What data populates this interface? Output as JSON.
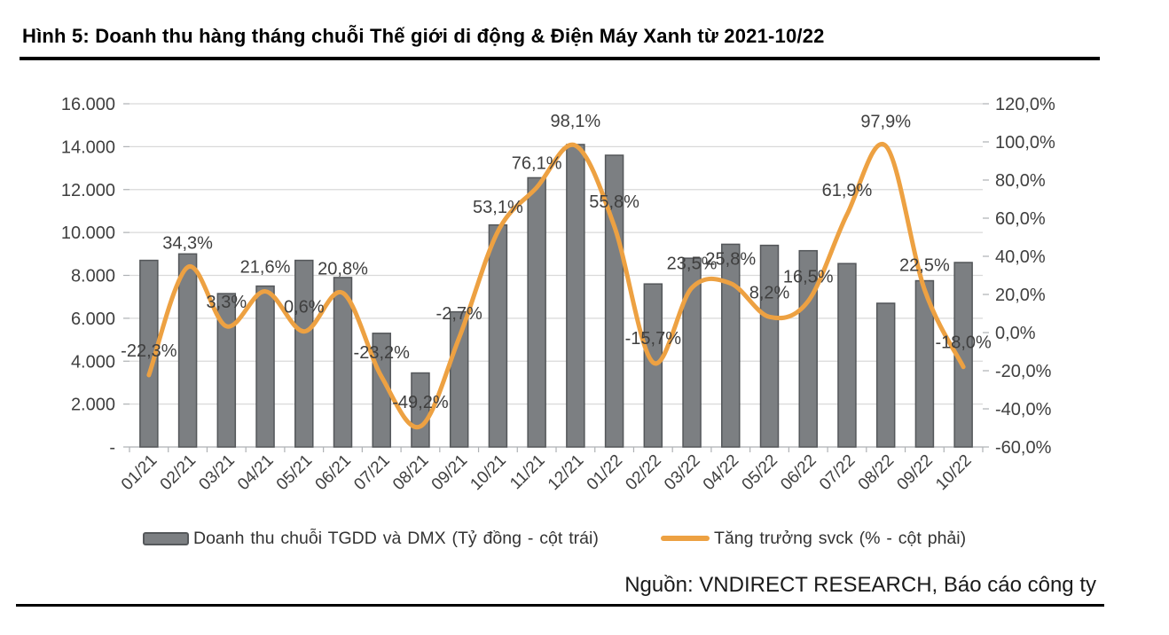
{
  "figure": {
    "title": "Hình 5: Doanh thu hàng tháng chuỗi Thế giới di động & Điện Máy Xanh từ 2021-10/22",
    "source": "Nguồn: VNDIRECT RESEARCH, Báo cáo công ty"
  },
  "legend": {
    "bar_label": "Doanh thu chuỗi TGDD và DMX (Tỷ đồng - cột trái)",
    "line_label": "Tăng trưởng svck (% - cột phải)"
  },
  "colors": {
    "bar_fill": "#7c7f82",
    "bar_stroke": "#54575a",
    "line": "#eda142",
    "grid": "#d9d9d9",
    "axis": "#aeb1b4",
    "tick": "#aeb1b4",
    "text": "#3f3f3f"
  },
  "chart_data": {
    "type": "bar",
    "subtype": "bar+line combo, dual axis",
    "categories": [
      "01/21",
      "02/21",
      "03/21",
      "04/21",
      "05/21",
      "06/21",
      "07/21",
      "08/21",
      "09/21",
      "10/21",
      "11/21",
      "12/21",
      "01/22",
      "02/22",
      "03/22",
      "04/22",
      "05/22",
      "06/22",
      "07/22",
      "08/22",
      "09/22",
      "10/22"
    ],
    "series": [
      {
        "name": "Doanh thu chuỗi TGDD và DMX (Tỷ đồng - cột trái)",
        "type": "bar",
        "axis": "left",
        "values": [
          8700,
          9000,
          7150,
          7500,
          8700,
          7900,
          5300,
          3450,
          6300,
          10350,
          12550,
          14100,
          13600,
          7600,
          8800,
          9450,
          9400,
          9150,
          8550,
          6700,
          7750,
          8600
        ]
      },
      {
        "name": "Tăng trưởng svck (% - cột phải)",
        "type": "line",
        "axis": "right",
        "values": [
          -22.3,
          34.3,
          3.3,
          21.6,
          0.6,
          20.8,
          -23.2,
          -49.2,
          -2.7,
          53.1,
          76.1,
          98.1,
          55.8,
          -15.7,
          23.5,
          25.8,
          8.2,
          16.5,
          61.9,
          97.9,
          22.5,
          -18.0
        ],
        "point_labels": [
          "-22,3%",
          "34,3%",
          "3,3%",
          "21,6%",
          "0,6%",
          "20,8%",
          "-23,2%",
          "-49,2%",
          "-2,7%",
          "53,1%",
          "76,1%",
          "98,1%",
          "55,8%",
          "-15,7%",
          "23,5%",
          "25,8%",
          "8,2%",
          "16,5%",
          "61,9%",
          "97,9%",
          "22,5%",
          "-18,0%"
        ]
      }
    ],
    "left_axis": {
      "ticks": [
        "16.000",
        "14.000",
        "12.000",
        "10.000",
        "8.000",
        "6.000",
        "4.000",
        "2.000",
        "-"
      ],
      "min": 0,
      "max": 16000
    },
    "right_axis": {
      "ticks": [
        "120,0%",
        "100,0%",
        "80,0%",
        "60,0%",
        "40,0%",
        "20,0%",
        "0,0%",
        "-20,0%",
        "-40,0%",
        "-60,0%"
      ],
      "min": -60,
      "max": 120
    },
    "grid": true,
    "legend_position": "bottom"
  }
}
